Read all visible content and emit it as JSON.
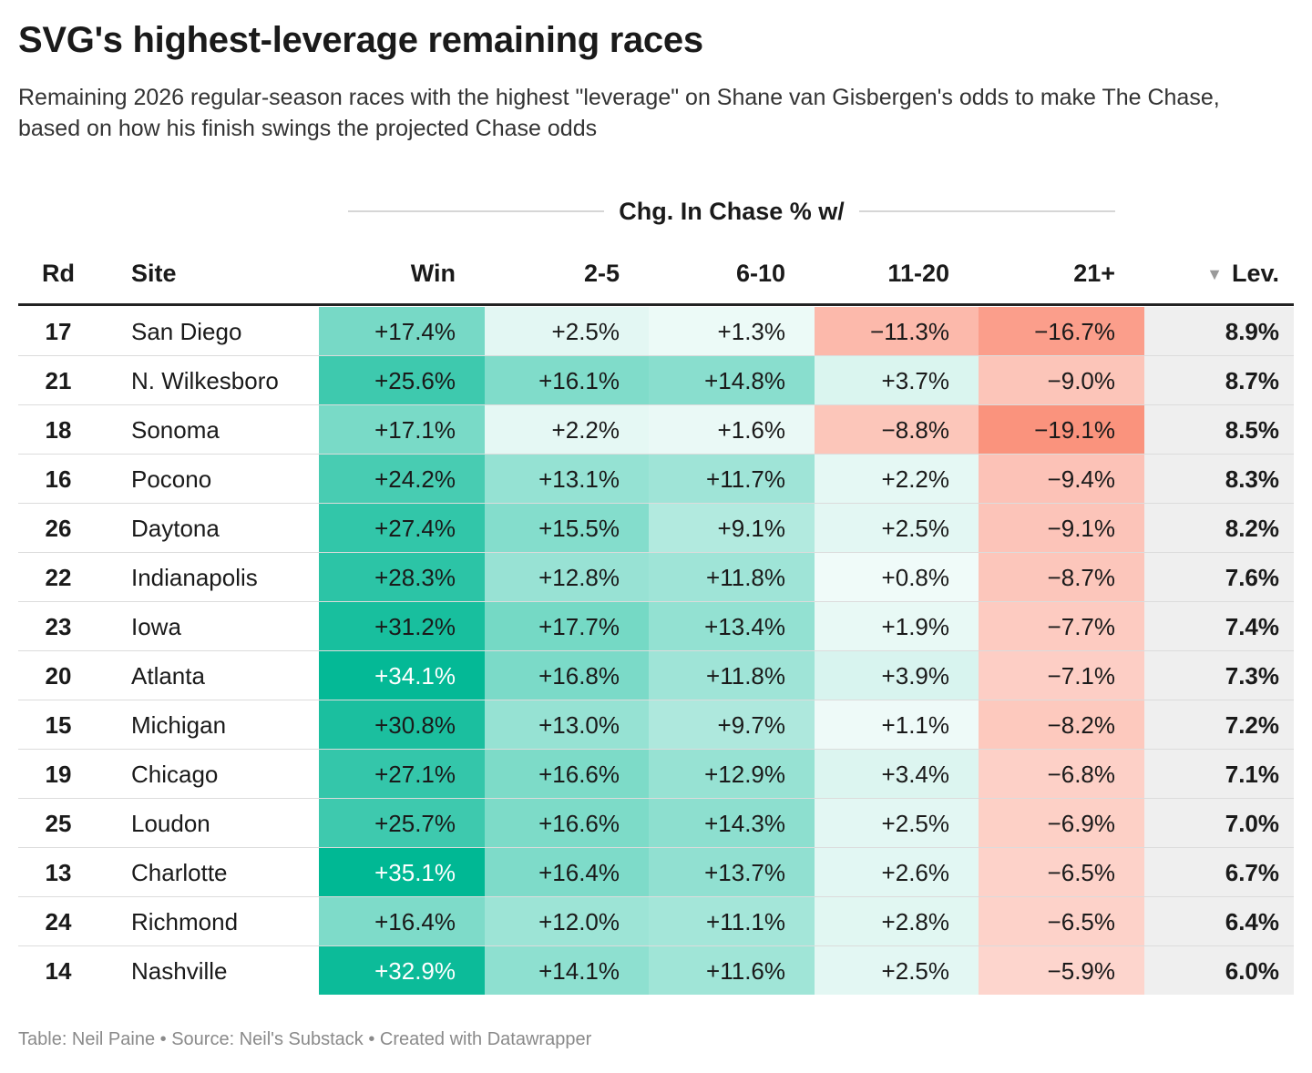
{
  "title": "SVG's highest-leverage remaining races",
  "subtitle": "Remaining 2026 regular-season races with the highest \"leverage\" on Shane van Gisbergen's odds to make The Chase, based on how his finish swings the projected Chase odds",
  "group_header": "Chg. In Chase % w/",
  "columns": {
    "rd": "Rd",
    "site": "Site",
    "win": "Win",
    "p2_5": "2-5",
    "p6_10": "6-10",
    "p11_20": "11-20",
    "p21": "21+",
    "lev": "Lev.",
    "sort_icon": "sort-descending-icon"
  },
  "colors": {
    "positive": "#00b894",
    "negative": "#fa8e78",
    "lev_background": "#efefef"
  },
  "chart_data": {
    "type": "table",
    "sort": {
      "column": "Lev.",
      "direction": "descending"
    },
    "rows": [
      {
        "rd": "17",
        "site": "San Diego",
        "win": "+17.4%",
        "p2_5": "+2.5%",
        "p6_10": "+1.3%",
        "p11_20": "−11.3%",
        "p21": "−16.7%",
        "lev": "8.9%"
      },
      {
        "rd": "21",
        "site": "N. Wilkesboro",
        "win": "+25.6%",
        "p2_5": "+16.1%",
        "p6_10": "+14.8%",
        "p11_20": "+3.7%",
        "p21": "−9.0%",
        "lev": "8.7%"
      },
      {
        "rd": "18",
        "site": "Sonoma",
        "win": "+17.1%",
        "p2_5": "+2.2%",
        "p6_10": "+1.6%",
        "p11_20": "−8.8%",
        "p21": "−19.1%",
        "lev": "8.5%"
      },
      {
        "rd": "16",
        "site": "Pocono",
        "win": "+24.2%",
        "p2_5": "+13.1%",
        "p6_10": "+11.7%",
        "p11_20": "+2.2%",
        "p21": "−9.4%",
        "lev": "8.3%"
      },
      {
        "rd": "26",
        "site": "Daytona",
        "win": "+27.4%",
        "p2_5": "+15.5%",
        "p6_10": "+9.1%",
        "p11_20": "+2.5%",
        "p21": "−9.1%",
        "lev": "8.2%"
      },
      {
        "rd": "22",
        "site": "Indianapolis",
        "win": "+28.3%",
        "p2_5": "+12.8%",
        "p6_10": "+11.8%",
        "p11_20": "+0.8%",
        "p21": "−8.7%",
        "lev": "7.6%"
      },
      {
        "rd": "23",
        "site": "Iowa",
        "win": "+31.2%",
        "p2_5": "+17.7%",
        "p6_10": "+13.4%",
        "p11_20": "+1.9%",
        "p21": "−7.7%",
        "lev": "7.4%"
      },
      {
        "rd": "20",
        "site": "Atlanta",
        "win": "+34.1%",
        "p2_5": "+16.8%",
        "p6_10": "+11.8%",
        "p11_20": "+3.9%",
        "p21": "−7.1%",
        "lev": "7.3%"
      },
      {
        "rd": "15",
        "site": "Michigan",
        "win": "+30.8%",
        "p2_5": "+13.0%",
        "p6_10": "+9.7%",
        "p11_20": "+1.1%",
        "p21": "−8.2%",
        "lev": "7.2%"
      },
      {
        "rd": "19",
        "site": "Chicago",
        "win": "+27.1%",
        "p2_5": "+16.6%",
        "p6_10": "+12.9%",
        "p11_20": "+3.4%",
        "p21": "−6.8%",
        "lev": "7.1%"
      },
      {
        "rd": "25",
        "site": "Loudon",
        "win": "+25.7%",
        "p2_5": "+16.6%",
        "p6_10": "+14.3%",
        "p11_20": "+2.5%",
        "p21": "−6.9%",
        "lev": "7.0%"
      },
      {
        "rd": "13",
        "site": "Charlotte",
        "win": "+35.1%",
        "p2_5": "+16.4%",
        "p6_10": "+13.7%",
        "p11_20": "+2.6%",
        "p21": "−6.5%",
        "lev": "6.7%"
      },
      {
        "rd": "24",
        "site": "Richmond",
        "win": "+16.4%",
        "p2_5": "+12.0%",
        "p6_10": "+11.1%",
        "p11_20": "+2.8%",
        "p21": "−6.5%",
        "lev": "6.4%"
      },
      {
        "rd": "14",
        "site": "Nashville",
        "win": "+32.9%",
        "p2_5": "+14.1%",
        "p6_10": "+11.6%",
        "p11_20": "+2.5%",
        "p21": "−5.9%",
        "lev": "6.0%"
      }
    ]
  },
  "footer": "Table: Neil Paine • Source: Neil's Substack • Created with Datawrapper"
}
